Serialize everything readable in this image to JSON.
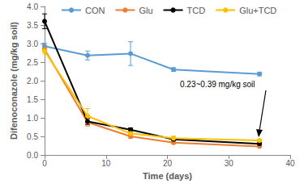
{
  "chart_data": {
    "type": "line",
    "x": [
      0,
      7,
      14,
      21,
      35
    ],
    "series": [
      {
        "name": "CON",
        "color": "#5b9bd5",
        "marker": "circle",
        "values": [
          2.93,
          2.68,
          2.73,
          2.3,
          2.18
        ],
        "errors": [
          0.08,
          0.12,
          0.32,
          0.05,
          0.05
        ]
      },
      {
        "name": "Glu",
        "color": "#ed7d31",
        "marker": "circle",
        "values": [
          2.85,
          0.88,
          0.5,
          0.33,
          0.23
        ],
        "errors": [
          0.05,
          0.1,
          0.05,
          0.03,
          0.02
        ]
      },
      {
        "name": "TCD",
        "color": "#000000",
        "marker": "circle",
        "values": [
          3.6,
          0.9,
          0.68,
          0.42,
          0.3
        ],
        "errors": [
          0.2,
          0.08,
          0.05,
          0.04,
          0.03
        ]
      },
      {
        "name": "Glu+TCD",
        "color": "#ffc000",
        "marker": "circle",
        "values": [
          2.8,
          1.05,
          0.58,
          0.45,
          0.39
        ],
        "errors": [
          0.08,
          0.2,
          0.06,
          0.06,
          0.04
        ]
      }
    ],
    "xlabel": "Time (days)",
    "ylabel": "Difenoconazole (mg/kg soil)",
    "xlim": [
      0,
      40
    ],
    "xticks": [
      0,
      10,
      20,
      30,
      40
    ],
    "ylim": [
      0,
      4
    ],
    "yticks": [
      {
        "value": 0,
        "label": "0.0"
      },
      {
        "value": 0.5,
        "label": "0.5"
      },
      {
        "value": 1,
        "label": "1.0"
      },
      {
        "value": 1.5,
        "label": "1.5"
      },
      {
        "value": 2,
        "label": "2.0"
      },
      {
        "value": 2.5,
        "label": "2.5"
      },
      {
        "value": 3,
        "label": "3.0"
      },
      {
        "value": 3.5,
        "label": "3.5"
      },
      {
        "value": 4,
        "label": "4.0"
      }
    ],
    "annotations": [
      "0.23~0.39 mg/kg soil"
    ],
    "legend": "top",
    "grid": false
  }
}
